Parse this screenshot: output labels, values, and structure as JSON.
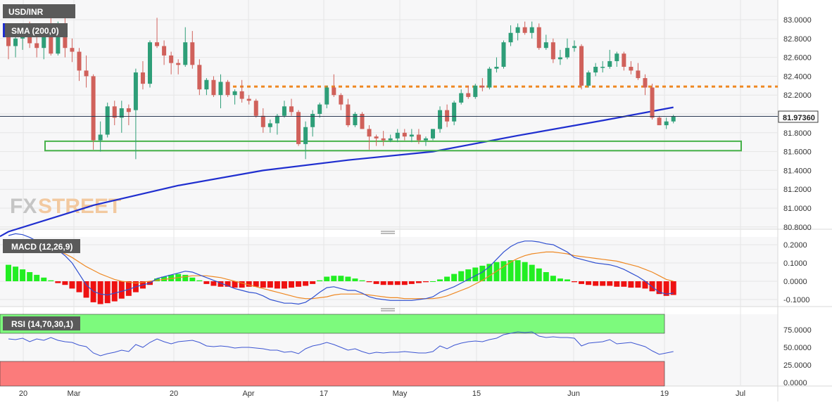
{
  "symbol_label": "USD/INR",
  "indicator_labels": {
    "sma": "SMA (200,0)",
    "macd": "MACD (12,26,9)",
    "rsi": "RSI (14,70,30,1)"
  },
  "watermark": {
    "part1": "FX",
    "part2": "STREET"
  },
  "current_price_label": "81.97360",
  "colors": {
    "bull": "#2e9e78",
    "bear": "#d0615b",
    "sma": "#1f2ecf",
    "resistance": "#ee8822",
    "support_box": "#47b24a",
    "macd_line": "#2f4fd0",
    "signal_line": "#ee8822",
    "hist_pos": "#22ee22",
    "hist_neg": "#ee1111",
    "rsi_overbought": "#7dfa7d",
    "rsi_oversold": "#fb7b7b",
    "rsi_line": "#3c55d2"
  },
  "chart_data": [
    {
      "type": "candlestick",
      "title": "USD/INR",
      "ylim": [
        80.75,
        83.1
      ],
      "y_ticks": [
        "83.0000",
        "82.8000",
        "82.6000",
        "82.4000",
        "82.2000",
        "82.0000",
        "81.8000",
        "81.6000",
        "81.4000",
        "81.2000",
        "81.0000",
        "80.8000"
      ],
      "x_ticks": [
        "20",
        "Mar",
        "20",
        "Apr",
        "17",
        "May",
        "15",
        "Jun",
        "19",
        "Jul"
      ],
      "last_price": 81.9736,
      "resistance_level": 82.29,
      "support_zone": [
        81.61,
        81.71
      ],
      "ohlc": [
        [
          82.85,
          82.95,
          82.58,
          82.72
        ],
        [
          82.72,
          82.85,
          82.6,
          82.8
        ],
        [
          82.8,
          82.92,
          82.68,
          82.88
        ],
        [
          82.88,
          82.98,
          82.7,
          82.75
        ],
        [
          82.75,
          82.88,
          82.6,
          82.7
        ],
        [
          82.7,
          82.92,
          82.58,
          82.92
        ],
        [
          82.92,
          83.02,
          82.62,
          82.64
        ],
        [
          82.64,
          82.98,
          82.62,
          82.96
        ],
        [
          82.96,
          83.08,
          82.6,
          82.7
        ],
        [
          82.7,
          82.8,
          82.55,
          82.66
        ],
        [
          82.66,
          82.7,
          82.35,
          82.46
        ],
        [
          82.46,
          82.62,
          82.28,
          82.4
        ],
        [
          82.4,
          82.42,
          81.62,
          81.72
        ],
        [
          81.72,
          81.92,
          81.6,
          81.78
        ],
        [
          81.78,
          82.12,
          81.75,
          82.08
        ],
        [
          82.08,
          82.14,
          81.88,
          81.96
        ],
        [
          81.96,
          82.14,
          81.8,
          82.06
        ],
        [
          82.06,
          82.1,
          81.88,
          82.02
        ],
        [
          82.04,
          82.48,
          81.52,
          82.44
        ],
        [
          82.44,
          82.56,
          82.26,
          82.32
        ],
        [
          82.32,
          82.78,
          82.28,
          82.76
        ],
        [
          82.76,
          83.02,
          82.7,
          82.72
        ],
        [
          82.72,
          82.78,
          82.52,
          82.62
        ],
        [
          82.62,
          82.66,
          82.42,
          82.54
        ],
        [
          82.54,
          82.58,
          82.42,
          82.52
        ],
        [
          82.52,
          82.92,
          82.5,
          82.76
        ],
        [
          82.76,
          82.88,
          82.48,
          82.52
        ],
        [
          82.52,
          82.58,
          82.2,
          82.26
        ],
        [
          82.26,
          82.38,
          82.2,
          82.36
        ],
        [
          82.36,
          82.4,
          82.18,
          82.2
        ],
        [
          82.2,
          82.42,
          82.06,
          82.34
        ],
        [
          82.34,
          82.36,
          82.18,
          82.2
        ],
        [
          82.2,
          82.26,
          82.1,
          82.24
        ],
        [
          82.24,
          82.36,
          82.12,
          82.16
        ],
        [
          82.16,
          82.2,
          82.1,
          82.14
        ],
        [
          82.14,
          82.16,
          81.96,
          81.98
        ],
        [
          81.98,
          82.06,
          81.8,
          81.86
        ],
        [
          81.86,
          81.94,
          81.8,
          81.9
        ],
        [
          81.9,
          82.0,
          81.78,
          81.98
        ],
        [
          81.98,
          82.14,
          81.96,
          82.08
        ],
        [
          82.08,
          82.16,
          81.98,
          82.02
        ],
        [
          82.02,
          82.04,
          81.66,
          81.68
        ],
        [
          81.68,
          81.92,
          81.52,
          81.86
        ],
        [
          81.86,
          82.04,
          81.76,
          82.0
        ],
        [
          82.0,
          82.12,
          81.96,
          82.1
        ],
        [
          82.1,
          82.3,
          82.06,
          82.28
        ],
        [
          82.28,
          82.42,
          82.18,
          82.2
        ],
        [
          82.2,
          82.22,
          82.04,
          82.1
        ],
        [
          82.1,
          82.16,
          81.86,
          81.88
        ],
        [
          81.88,
          82.02,
          81.86,
          82.0
        ],
        [
          82.0,
          82.02,
          81.84,
          81.84
        ],
        [
          81.84,
          81.88,
          81.62,
          81.76
        ],
        [
          81.76,
          81.78,
          81.66,
          81.74
        ],
        [
          81.74,
          81.82,
          81.66,
          81.72
        ],
        [
          81.72,
          81.78,
          81.7,
          81.74
        ],
        [
          81.74,
          81.84,
          81.7,
          81.8
        ],
        [
          81.8,
          81.84,
          81.72,
          81.76
        ],
        [
          81.76,
          81.84,
          81.7,
          81.78
        ],
        [
          81.78,
          81.84,
          81.68,
          81.72
        ],
        [
          81.72,
          81.76,
          81.66,
          81.74
        ],
        [
          81.74,
          81.84,
          81.72,
          81.84
        ],
        [
          81.84,
          82.08,
          81.8,
          82.04
        ],
        [
          82.04,
          82.1,
          81.86,
          81.92
        ],
        [
          81.92,
          82.14,
          81.88,
          82.12
        ],
        [
          82.12,
          82.26,
          82.1,
          82.22
        ],
        [
          82.22,
          82.3,
          82.16,
          82.18
        ],
        [
          82.18,
          82.32,
          82.16,
          82.3
        ],
        [
          82.3,
          82.38,
          82.24,
          82.28
        ],
        [
          82.28,
          82.5,
          82.26,
          82.48
        ],
        [
          82.48,
          82.6,
          82.44,
          82.5
        ],
        [
          82.5,
          82.78,
          82.48,
          82.76
        ],
        [
          82.76,
          82.94,
          82.72,
          82.86
        ],
        [
          82.86,
          82.96,
          82.78,
          82.92
        ],
        [
          82.92,
          82.98,
          82.84,
          82.86
        ],
        [
          82.86,
          82.98,
          82.8,
          82.92
        ],
        [
          82.92,
          82.96,
          82.68,
          82.7
        ],
        [
          82.7,
          82.84,
          82.68,
          82.76
        ],
        [
          82.76,
          82.8,
          82.54,
          82.58
        ],
        [
          82.58,
          82.68,
          82.52,
          82.6
        ],
        [
          82.6,
          82.8,
          82.58,
          82.7
        ],
        [
          82.7,
          82.78,
          82.66,
          82.72
        ],
        [
          82.72,
          82.74,
          82.26,
          82.3
        ],
        [
          82.3,
          82.46,
          82.28,
          82.44
        ],
        [
          82.44,
          82.54,
          82.4,
          82.5
        ],
        [
          82.5,
          82.56,
          82.44,
          82.5
        ],
        [
          82.5,
          82.68,
          82.48,
          82.56
        ],
        [
          82.56,
          82.66,
          82.5,
          82.64
        ],
        [
          82.64,
          82.66,
          82.46,
          82.5
        ],
        [
          82.5,
          82.56,
          82.42,
          82.46
        ],
        [
          82.46,
          82.54,
          82.36,
          82.38
        ],
        [
          82.38,
          82.42,
          82.2,
          82.28
        ],
        [
          82.28,
          82.32,
          81.94,
          81.96
        ],
        [
          81.96,
          81.98,
          81.88,
          81.88
        ],
        [
          81.88,
          81.96,
          81.84,
          81.92
        ],
        [
          81.92,
          81.99,
          81.9,
          81.97
        ]
      ]
    },
    {
      "type": "line",
      "name": "SMA (200,0)",
      "x_index": [
        0,
        12,
        24,
        36,
        48,
        60,
        72,
        84,
        94
      ],
      "values": [
        80.75,
        81.03,
        81.24,
        81.4,
        81.51,
        81.6,
        81.77,
        81.93,
        82.07
      ]
    },
    {
      "type": "bar",
      "title": "MACD (12,26,9)",
      "ylim": [
        -0.14,
        0.235
      ],
      "y_ticks": [
        "0.2000",
        "0.1000",
        "0.0000",
        "-0.1000"
      ],
      "histogram": [
        0.09,
        0.08,
        0.065,
        0.05,
        0.035,
        0.02,
        0.005,
        -0.01,
        -0.02,
        -0.04,
        -0.06,
        -0.09,
        -0.115,
        -0.125,
        -0.12,
        -0.11,
        -0.095,
        -0.08,
        -0.06,
        -0.04,
        -0.02,
        0.015,
        0.025,
        0.035,
        0.04,
        0.035,
        0.02,
        0.005,
        -0.015,
        -0.025,
        -0.03,
        -0.03,
        -0.035,
        -0.035,
        -0.03,
        -0.03,
        -0.035,
        -0.035,
        -0.04,
        -0.04,
        -0.035,
        -0.03,
        -0.025,
        -0.015,
        0.005,
        0.025,
        0.03,
        0.03,
        0.025,
        0.015,
        0.005,
        -0.005,
        -0.015,
        -0.02,
        -0.02,
        -0.02,
        -0.02,
        -0.015,
        -0.01,
        -0.005,
        0.0,
        0.01,
        0.025,
        0.04,
        0.055,
        0.065,
        0.075,
        0.085,
        0.095,
        0.105,
        0.11,
        0.115,
        0.115,
        0.105,
        0.09,
        0.07,
        0.05,
        0.03,
        0.015,
        0.01,
        -0.005,
        -0.015,
        -0.02,
        -0.025,
        -0.025,
        -0.025,
        -0.03,
        -0.03,
        -0.035,
        -0.035,
        -0.04,
        -0.055,
        -0.07,
        -0.08,
        -0.075
      ],
      "macd": [
        0.25,
        0.26,
        0.255,
        0.24,
        0.22,
        0.2,
        0.2,
        0.17,
        0.14,
        0.1,
        0.04,
        -0.02,
        -0.055,
        -0.07,
        -0.075,
        -0.065,
        -0.055,
        -0.045,
        -0.03,
        -0.02,
        -0.01,
        0.015,
        0.025,
        0.035,
        0.045,
        0.055,
        0.05,
        0.035,
        0.02,
        0.005,
        -0.01,
        -0.025,
        -0.04,
        -0.05,
        -0.06,
        -0.065,
        -0.08,
        -0.1,
        -0.11,
        -0.12,
        -0.12,
        -0.125,
        -0.115,
        -0.09,
        -0.06,
        -0.035,
        -0.03,
        -0.04,
        -0.05,
        -0.05,
        -0.065,
        -0.085,
        -0.095,
        -0.1,
        -0.105,
        -0.105,
        -0.105,
        -0.105,
        -0.1,
        -0.095,
        -0.085,
        -0.06,
        -0.045,
        -0.03,
        -0.01,
        0.01,
        0.03,
        0.05,
        0.08,
        0.12,
        0.16,
        0.19,
        0.21,
        0.22,
        0.22,
        0.215,
        0.205,
        0.2,
        0.18,
        0.16,
        0.13,
        0.12,
        0.11,
        0.1,
        0.095,
        0.09,
        0.08,
        0.065,
        0.045,
        0.025,
        0.0,
        -0.03,
        -0.06,
        -0.07,
        -0.065
      ],
      "signal": [
        0.22,
        0.215,
        0.21,
        0.205,
        0.2,
        0.19,
        0.18,
        0.165,
        0.15,
        0.13,
        0.105,
        0.08,
        0.06,
        0.04,
        0.025,
        0.01,
        0.0,
        -0.005,
        -0.01,
        -0.005,
        0.0,
        0.005,
        0.01,
        0.015,
        0.02,
        0.025,
        0.03,
        0.03,
        0.03,
        0.025,
        0.02,
        0.01,
        0.0,
        -0.01,
        -0.02,
        -0.03,
        -0.04,
        -0.05,
        -0.06,
        -0.07,
        -0.08,
        -0.09,
        -0.095,
        -0.095,
        -0.09,
        -0.085,
        -0.075,
        -0.07,
        -0.07,
        -0.07,
        -0.07,
        -0.075,
        -0.08,
        -0.085,
        -0.09,
        -0.09,
        -0.095,
        -0.095,
        -0.095,
        -0.095,
        -0.095,
        -0.09,
        -0.08,
        -0.065,
        -0.05,
        -0.035,
        -0.015,
        0.005,
        0.03,
        0.055,
        0.08,
        0.105,
        0.125,
        0.14,
        0.15,
        0.155,
        0.16,
        0.16,
        0.155,
        0.15,
        0.14,
        0.135,
        0.13,
        0.125,
        0.12,
        0.115,
        0.11,
        0.1,
        0.09,
        0.08,
        0.065,
        0.05,
        0.03,
        0.01,
        0.0
      ]
    },
    {
      "type": "line",
      "title": "RSI (14,70,30,1)",
      "ylim": [
        0,
        100
      ],
      "y_ticks": [
        "75.0000",
        "50.0000",
        "25.0000",
        "0.0000"
      ],
      "overbought": 70,
      "oversold": 30,
      "values": [
        62,
        61,
        63,
        58,
        62,
        60,
        64,
        60,
        58,
        57,
        53,
        51,
        42,
        38,
        41,
        43,
        46,
        44,
        54,
        50,
        57,
        62,
        58,
        55,
        58,
        59,
        60,
        57,
        52,
        51,
        52,
        51,
        49,
        50,
        50,
        49,
        48,
        46,
        46,
        43,
        44,
        41,
        48,
        52,
        54,
        57,
        54,
        50,
        46,
        48,
        44,
        41,
        43,
        42,
        43,
        43,
        44,
        43,
        42,
        42,
        44,
        52,
        48,
        53,
        56,
        58,
        59,
        58,
        61,
        63,
        68,
        70,
        72,
        71,
        72,
        66,
        64,
        65,
        64,
        64,
        63,
        52,
        56,
        57,
        58,
        61,
        55,
        56,
        57,
        54,
        51,
        45,
        40,
        42,
        44
      ]
    }
  ]
}
